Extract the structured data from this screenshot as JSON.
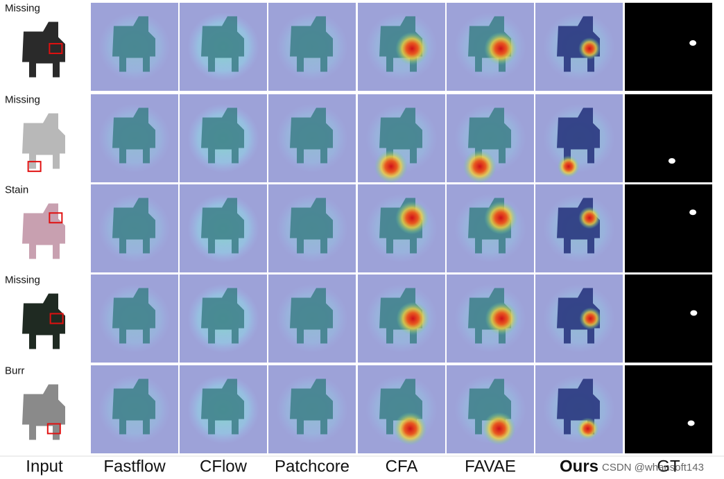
{
  "rows": [
    {
      "label": "Missing"
    },
    {
      "label": "Missing"
    },
    {
      "label": "Stain"
    },
    {
      "label": "Missing"
    },
    {
      "label": "Burr"
    }
  ],
  "columns": [
    "Input",
    "Fastflow",
    "CFlow",
    "Patchcore",
    "CFA",
    "FAVAE",
    "Ours",
    "GT"
  ],
  "watermark": "CSDN @whansoft143"
}
